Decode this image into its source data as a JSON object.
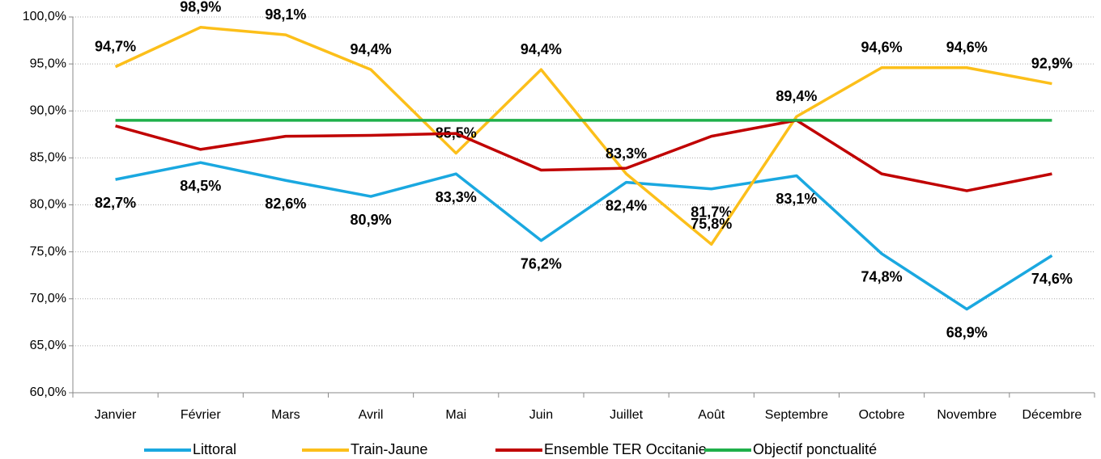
{
  "chart_data": {
    "type": "line",
    "categories": [
      "Janvier",
      "Février",
      "Mars",
      "Avril",
      "Mai",
      "Juin",
      "Juillet",
      "Août",
      "Septembre",
      "Octobre",
      "Novembre",
      "Décembre"
    ],
    "series": [
      {
        "name": "Littoral",
        "color": "#1aa8e0",
        "values": [
          82.7,
          84.5,
          82.6,
          80.9,
          83.3,
          76.2,
          82.4,
          81.7,
          83.1,
          74.8,
          68.9,
          74.6
        ],
        "value_labels": [
          "82,7%",
          "84,5%",
          "82,6%",
          "80,9%",
          "83,3%",
          "76,2%",
          "82,4%",
          "81,7%",
          "83,1%",
          "74,8%",
          "68,9%",
          "74,6%"
        ]
      },
      {
        "name": "Train-Jaune",
        "color": "#fcbf1a",
        "values": [
          94.7,
          98.9,
          98.1,
          94.4,
          85.5,
          94.4,
          83.3,
          75.8,
          89.4,
          94.6,
          94.6,
          92.9
        ],
        "value_labels": [
          "94,7%",
          "98,9%",
          "98,1%",
          "94,4%",
          "85,5%",
          "94,4%",
          "83,3%",
          "75,8%",
          "89,4%",
          "94,6%",
          "94,6%",
          "92,9%"
        ]
      },
      {
        "name": "Ensemble TER Occitanie",
        "color": "#c00000",
        "values": [
          88.4,
          85.9,
          87.3,
          87.4,
          87.6,
          83.7,
          83.9,
          87.3,
          89.0,
          83.3,
          81.5,
          83.3
        ]
      },
      {
        "name": "Objectif ponctualité",
        "color": "#1fb04a",
        "values": [
          89,
          89,
          89,
          89,
          89,
          89,
          89,
          89,
          89,
          89,
          89,
          89
        ]
      }
    ],
    "ylim": [
      60,
      100
    ],
    "yticks": [
      {
        "value": 60,
        "label": "60,0%"
      },
      {
        "value": 65,
        "label": "65,0%"
      },
      {
        "value": 70,
        "label": "70,0%"
      },
      {
        "value": 75,
        "label": "75,0%"
      },
      {
        "value": 80,
        "label": "80,0%"
      },
      {
        "value": 85,
        "label": "85,0%"
      },
      {
        "value": 90,
        "label": "90,0%"
      },
      {
        "value": 95,
        "label": "95,0%"
      },
      {
        "value": 100,
        "label": "100,0%"
      }
    ],
    "grid": true,
    "legend": "bottom"
  }
}
